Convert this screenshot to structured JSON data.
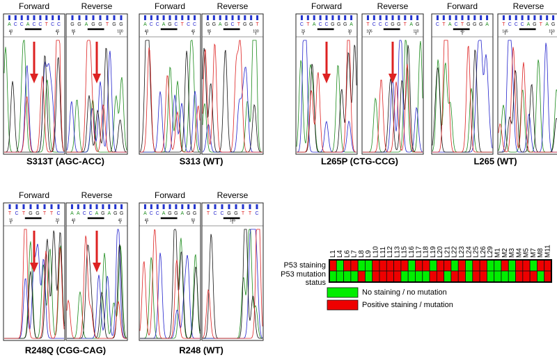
{
  "groups": [
    {
      "label": "S313T (AGC-ACC)",
      "traces": [
        {
          "heading": "Forward",
          "sequence": "ACCACCTCC",
          "ticks": [
            "40",
            "45"
          ]
        },
        {
          "heading": "Reverse",
          "sequence": "GGAGGTGG",
          "ticks": [
            "95",
            "100"
          ]
        }
      ]
    },
    {
      "label": "S313 (WT)",
      "traces": [
        {
          "heading": "Forward",
          "sequence": "ACCAGCTCC",
          "ticks": [
            "40",
            "45"
          ]
        },
        {
          "heading": "Reverse",
          "sequence": "GGAGCTGGT",
          "ticks": [
            "95",
            "100"
          ]
        }
      ]
    },
    {
      "label": "L265P (CTG-CCG)",
      "traces": [
        {
          "heading": "Forward",
          "sequence": "CTACCGGGA",
          "ticks": [
            "25",
            "30"
          ]
        },
        {
          "heading": "Reverse",
          "sequence": "TCCCGGTAG",
          "ticks": [
            "105",
            "110"
          ]
        }
      ]
    },
    {
      "label": "L265 (WT)",
      "traces": [
        {
          "heading": "Forward",
          "sequence": "CTACTGGGA",
          "ticks": [
            "45"
          ]
        },
        {
          "heading": "Reverse",
          "sequence": "TCCCAGTAG",
          "ticks": [
            "145",
            "150"
          ]
        }
      ]
    },
    {
      "label": "R248Q (CGG-CAG)",
      "traces": [
        {
          "heading": "Forward",
          "sequence": "TCTGGTTC",
          "ticks": [
            "15",
            "20"
          ]
        },
        {
          "heading": "Reverse",
          "sequence": "AACCAGAGG",
          "ticks": [
            "40",
            "45"
          ]
        }
      ]
    },
    {
      "label": "R248 (WT)",
      "traces": [
        {
          "heading": "Forward",
          "sequence": "ACCAGGAGG",
          "ticks": [
            "45",
            "50"
          ]
        },
        {
          "heading": "Reverse",
          "sequence": "TCCGGTTC",
          "ticks": [
            "145"
          ]
        }
      ]
    }
  ],
  "heatmap": {
    "columns": [
      "L1",
      "L4",
      "L6",
      "L7",
      "L8",
      "L9",
      "L10",
      "L11",
      "L12",
      "L13",
      "L15",
      "L16",
      "L17",
      "L18",
      "L19",
      "L20",
      "L21",
      "L22",
      "L23",
      "L24",
      "L25",
      "L26",
      "L29",
      "M1",
      "M2",
      "M3",
      "M4",
      "M5",
      "M7",
      "M8",
      "M11"
    ],
    "rows": [
      {
        "name": "P53 staining",
        "values": [
          1,
          0,
          1,
          1,
          0,
          0,
          1,
          1,
          1,
          1,
          1,
          0,
          1,
          1,
          0,
          1,
          1,
          0,
          1,
          0,
          1,
          1,
          0,
          0,
          1,
          0,
          1,
          1,
          0,
          1,
          1
        ]
      },
      {
        "name": "P53 mutation status",
        "values": [
          0,
          0,
          0,
          0,
          1,
          0,
          1,
          1,
          1,
          1,
          0,
          0,
          0,
          0,
          1,
          1,
          0,
          1,
          1,
          0,
          1,
          1,
          0,
          0,
          0,
          0,
          1,
          1,
          1,
          0,
          1
        ]
      }
    ],
    "legend": [
      {
        "value": 0,
        "label": "No staining / no mutation",
        "color": "#00ee00"
      },
      {
        "value": 1,
        "label": "Positive staining / mutation",
        "color": "#ee0000"
      }
    ]
  }
}
